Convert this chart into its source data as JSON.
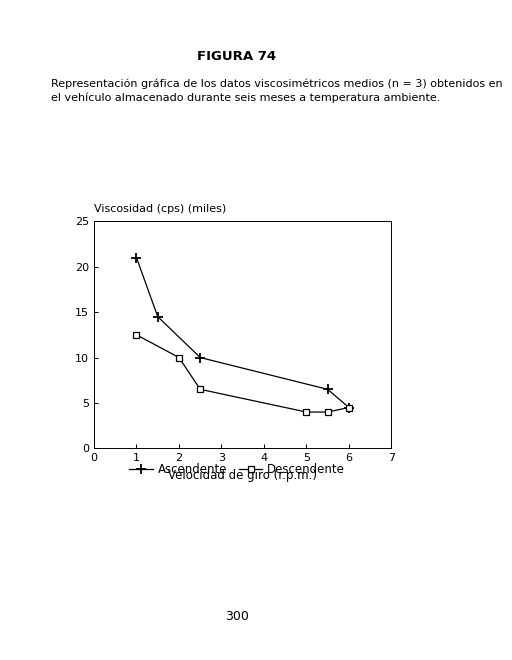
{
  "title": "FIGURA 74",
  "description_line1": "Representación gráfica de los datos viscosimétricos medios (n = 3) obtenidos en",
  "description_line2": "el vehículo almacenado durante seis meses a temperatura ambiente.",
  "ylabel": "Viscosidad (cps) (miles)",
  "xlabel": "Velocidad de giro (r.p.m.)",
  "ascendente_x": [
    1,
    1.5,
    2.5,
    5.5,
    6
  ],
  "ascendente_y": [
    21.0,
    14.5,
    10.0,
    6.5,
    4.5
  ],
  "descendente_x": [
    1,
    2,
    2.5,
    5,
    5.5,
    6
  ],
  "descendente_y": [
    12.5,
    10.0,
    6.5,
    4.0,
    4.0,
    4.5
  ],
  "xlim": [
    0,
    7
  ],
  "ylim": [
    0,
    25
  ],
  "xticks": [
    0,
    1,
    2,
    3,
    4,
    5,
    6,
    7
  ],
  "yticks": [
    0,
    5,
    10,
    15,
    20,
    25
  ],
  "legend_asc": "Ascendente",
  "legend_desc": "Descendente",
  "page_number": "300",
  "background_color": "#ffffff"
}
